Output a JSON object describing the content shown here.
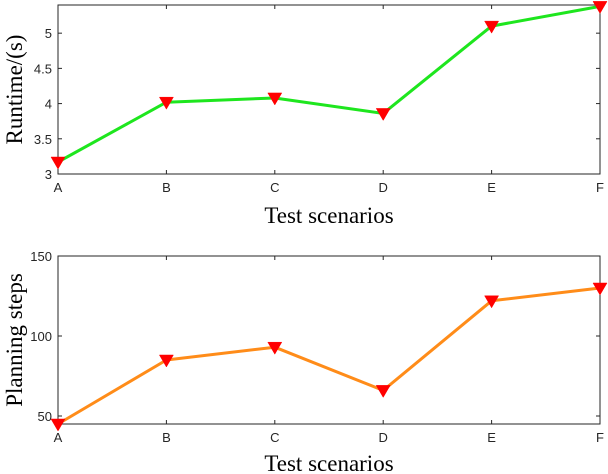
{
  "chart_data": [
    {
      "type": "line",
      "xlabel": "Test scenarios",
      "ylabel": "Runtime/(s)",
      "categories": [
        "A",
        "B",
        "C",
        "D",
        "E",
        "F"
      ],
      "ylim": [
        3,
        5.4
      ],
      "yticks": [
        "3",
        "3.5",
        "4",
        "4.5",
        "5"
      ],
      "grid": false,
      "series": [
        {
          "values": [
            3.17,
            4.02,
            4.08,
            3.86,
            5.1,
            5.38
          ],
          "color": "#1ee61e",
          "marker": "red-down-triangle"
        }
      ]
    },
    {
      "type": "line",
      "xlabel": "Test scenarios",
      "ylabel": "Planning steps",
      "categories": [
        "A",
        "B",
        "C",
        "D",
        "E",
        "F"
      ],
      "ylim": [
        45,
        150
      ],
      "yticks": [
        "50",
        "100",
        "150"
      ],
      "grid": false,
      "series": [
        {
          "values": [
            45,
            85,
            93,
            66,
            122,
            130
          ],
          "color": "#ff8c19",
          "marker": "red-down-triangle"
        }
      ]
    }
  ],
  "colors": {
    "marker": "#ff0000",
    "axis": "#262626"
  }
}
